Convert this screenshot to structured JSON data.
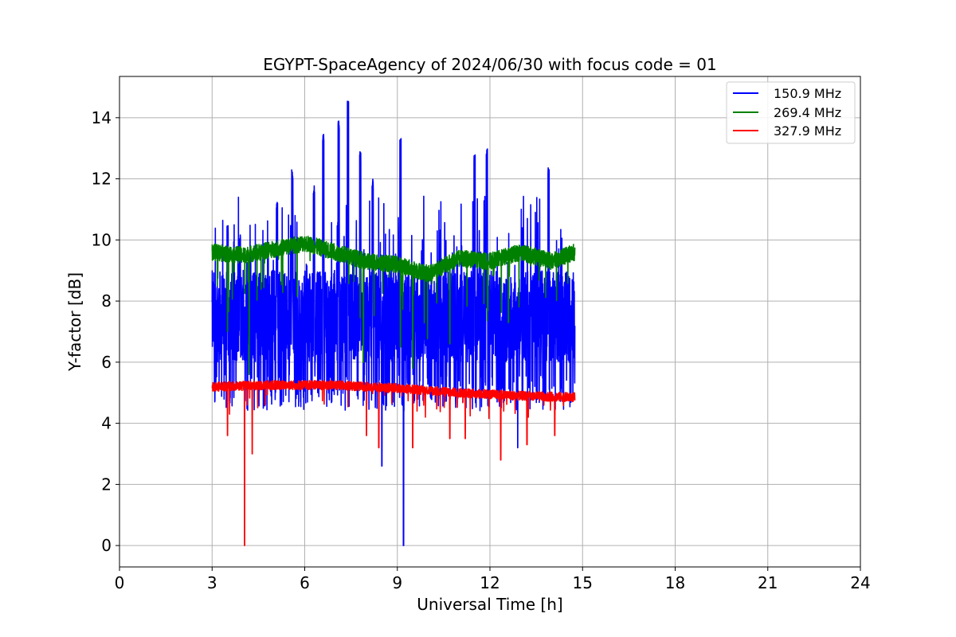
{
  "chart_data": {
    "type": "line",
    "title": "EGYPT-SpaceAgency of 2024/06/30 with focus code = 01",
    "xlabel": "Universal Time [h]",
    "ylabel": "Y-factor [dB]",
    "xlim": [
      0,
      24
    ],
    "ylim": [
      -0.7,
      15.35
    ],
    "xticks": [
      0,
      3,
      6,
      9,
      12,
      15,
      18,
      21,
      24
    ],
    "yticks": [
      0,
      2,
      4,
      6,
      8,
      10,
      12,
      14
    ],
    "grid": true,
    "legend_position": "top-right",
    "series": [
      {
        "name": "150.9 MHz",
        "color": "#0000ff",
        "x_range": [
          3.0,
          14.75
        ],
        "typical_range": [
          5.0,
          9.0
        ],
        "peaks": [
          {
            "x": 3.5,
            "y": 10.5
          },
          {
            "x": 3.9,
            "y": 10.2
          },
          {
            "x": 5.1,
            "y": 11.3
          },
          {
            "x": 5.6,
            "y": 12.3
          },
          {
            "x": 6.3,
            "y": 11.8
          },
          {
            "x": 6.6,
            "y": 13.6
          },
          {
            "x": 7.1,
            "y": 13.9
          },
          {
            "x": 7.4,
            "y": 14.6
          },
          {
            "x": 7.8,
            "y": 12.9
          },
          {
            "x": 8.2,
            "y": 12.0
          },
          {
            "x": 9.1,
            "y": 13.4
          },
          {
            "x": 11.5,
            "y": 12.8
          },
          {
            "x": 11.9,
            "y": 13.0
          },
          {
            "x": 13.9,
            "y": 12.4
          }
        ],
        "dips": [
          {
            "x": 8.5,
            "y": 2.6
          },
          {
            "x": 9.2,
            "y": 0.0
          },
          {
            "x": 12.9,
            "y": 3.2
          }
        ]
      },
      {
        "name": "269.4 MHz",
        "color": "#008000",
        "x_range": [
          3.0,
          14.75
        ],
        "baseline": [
          {
            "x": 3.0,
            "y": 9.6
          },
          {
            "x": 4.0,
            "y": 9.5
          },
          {
            "x": 5.0,
            "y": 9.7
          },
          {
            "x": 6.0,
            "y": 9.9
          },
          {
            "x": 7.0,
            "y": 9.6
          },
          {
            "x": 8.0,
            "y": 9.3
          },
          {
            "x": 9.0,
            "y": 9.2
          },
          {
            "x": 10.0,
            "y": 8.9
          },
          {
            "x": 11.0,
            "y": 9.4
          },
          {
            "x": 12.0,
            "y": 9.3
          },
          {
            "x": 13.0,
            "y": 9.6
          },
          {
            "x": 14.0,
            "y": 9.3
          },
          {
            "x": 14.75,
            "y": 9.6
          }
        ],
        "dips": [
          {
            "x": 3.5,
            "y": 7.0
          },
          {
            "x": 4.2,
            "y": 5.6
          },
          {
            "x": 7.9,
            "y": 6.0
          },
          {
            "x": 9.1,
            "y": 6.5
          },
          {
            "x": 9.5,
            "y": 5.8
          },
          {
            "x": 10.7,
            "y": 6.6
          },
          {
            "x": 12.6,
            "y": 7.3
          }
        ]
      },
      {
        "name": "327.9 MHz",
        "color": "#ff0000",
        "x_range": [
          3.0,
          14.75
        ],
        "baseline": [
          {
            "x": 3.0,
            "y": 5.2
          },
          {
            "x": 5.0,
            "y": 5.25
          },
          {
            "x": 7.0,
            "y": 5.25
          },
          {
            "x": 9.0,
            "y": 5.15
          },
          {
            "x": 11.0,
            "y": 5.0
          },
          {
            "x": 13.0,
            "y": 4.9
          },
          {
            "x": 14.75,
            "y": 4.85
          }
        ],
        "dips": [
          {
            "x": 3.5,
            "y": 3.6
          },
          {
            "x": 4.05,
            "y": 0.0
          },
          {
            "x": 4.3,
            "y": 3.0
          },
          {
            "x": 8.0,
            "y": 3.6
          },
          {
            "x": 8.4,
            "y": 3.2
          },
          {
            "x": 9.5,
            "y": 3.2
          },
          {
            "x": 10.7,
            "y": 3.5
          },
          {
            "x": 11.2,
            "y": 3.5
          },
          {
            "x": 12.35,
            "y": 2.8
          },
          {
            "x": 13.2,
            "y": 3.3
          },
          {
            "x": 14.1,
            "y": 3.6
          }
        ]
      }
    ]
  }
}
